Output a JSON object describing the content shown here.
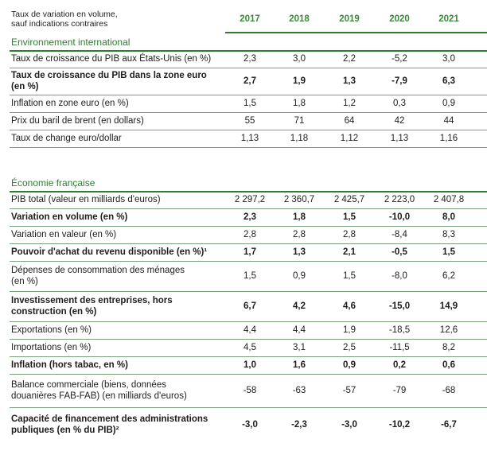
{
  "header": {
    "caption_line1": "Taux de variation en volume,",
    "caption_line2": "sauf indications contraires",
    "years": [
      "2017",
      "2018",
      "2019",
      "2020",
      "2021"
    ]
  },
  "sections": [
    {
      "title": "Environnement international",
      "rows": [
        {
          "label": [
            "Taux de croissance du PIB aux États-Unis (en %)"
          ],
          "bold": false,
          "values": [
            "2,3",
            "3,0",
            "2,2",
            "-5,2",
            "3,0"
          ]
        },
        {
          "label": [
            "Taux de croissance du PIB dans la zone euro",
            "(en %)"
          ],
          "bold": true,
          "values": [
            "2,7",
            "1,9",
            "1,3",
            "-7,9",
            "6,3"
          ]
        },
        {
          "label": [
            "Inflation en zone euro (en %)"
          ],
          "bold": false,
          "values": [
            "1,5",
            "1,8",
            "1,2",
            "0,3",
            "0,9"
          ]
        },
        {
          "label": [
            "Prix du baril de brent (en dollars)"
          ],
          "bold": false,
          "values": [
            "55",
            "71",
            "64",
            "42",
            "44"
          ]
        },
        {
          "label": [
            "Taux de change euro/dollar"
          ],
          "bold": false,
          "values": [
            "1,13",
            "1,18",
            "1,12",
            "1,13",
            "1,16"
          ]
        }
      ]
    },
    {
      "title": "Économie française",
      "rows": [
        {
          "label": [
            "PIB total (valeur en milliards d'euros)"
          ],
          "bold": false,
          "values": [
            "2 297,2",
            "2 360,7",
            "2 425,7",
            "2 223,0",
            "2 407,8"
          ]
        },
        {
          "label": [
            "Variation en volume (en %)"
          ],
          "bold": true,
          "values": [
            "2,3",
            "1,8",
            "1,5",
            "-10,0",
            "8,0"
          ]
        },
        {
          "label": [
            "Variation en valeur (en %)"
          ],
          "bold": false,
          "values": [
            "2,8",
            "2,8",
            "2,8",
            "-8,4",
            "8,3"
          ]
        },
        {
          "label": [
            "Pouvoir d'achat du revenu disponible (en %)¹"
          ],
          "bold": true,
          "values": [
            "1,7",
            "1,3",
            "2,1",
            "-0,5",
            "1,5"
          ]
        },
        {
          "label": [
            "Dépenses de consommation des ménages",
            "(en %)"
          ],
          "bold": false,
          "values": [
            "1,5",
            "0,9",
            "1,5",
            "-8,0",
            "6,2"
          ]
        },
        {
          "label": [
            "Investissement des entreprises, hors",
            "construction (en %)"
          ],
          "bold": true,
          "values": [
            "6,7",
            "4,2",
            "4,6",
            "-15,0",
            "14,9"
          ]
        },
        {
          "label": [
            "Exportations (en %)"
          ],
          "bold": false,
          "values": [
            "4,4",
            "4,4",
            "1,9",
            "-18,5",
            "12,6"
          ]
        },
        {
          "label": [
            "Importations (en %)"
          ],
          "bold": false,
          "values": [
            "4,5",
            "3,1",
            "2,5",
            "-11,5",
            "8,2"
          ]
        },
        {
          "label": [
            "Inflation (hors tabac, en %)"
          ],
          "bold": true,
          "values": [
            "1,0",
            "1,6",
            "0,9",
            "0,2",
            "0,6"
          ]
        },
        {
          "label": [
            "Balance commerciale (biens, données",
            "douanières FAB-FAB) (en milliards d'euros)"
          ],
          "bold": false,
          "values": [
            "-58",
            "-63",
            "-57",
            "-79",
            "-68"
          ]
        },
        {
          "label": [
            "Capacité de financement des administrations",
            "publiques (en % du PIB)²"
          ],
          "bold": true,
          "values": [
            "-3,0",
            "-2,3",
            "-3,0",
            "-10,2",
            "-6,7"
          ]
        }
      ]
    }
  ]
}
